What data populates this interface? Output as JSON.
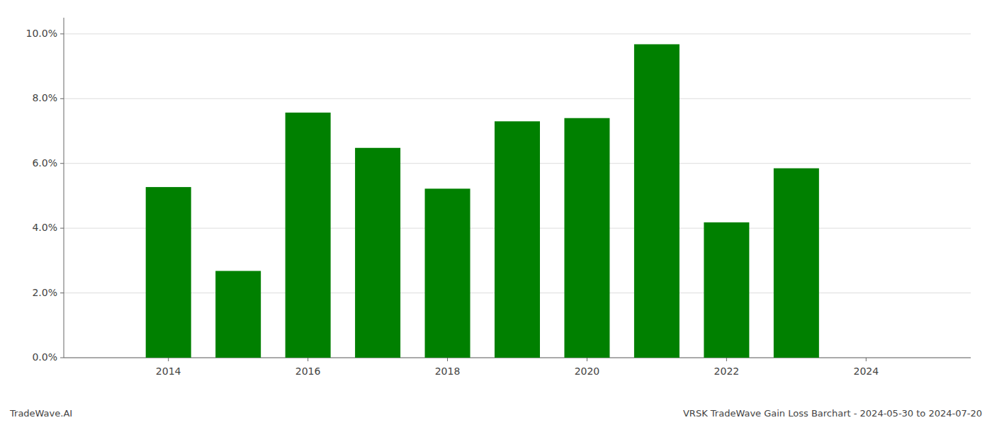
{
  "chart_data": {
    "type": "bar",
    "title": "VRSK TradeWave Gain Loss Barchart - 2024-05-30 to 2024-07-20",
    "annotations": [
      "TradeWave.AI"
    ],
    "x": [
      2014,
      2015,
      2016,
      2017,
      2018,
      2019,
      2020,
      2021,
      2022,
      2023
    ],
    "values": [
      0.0527,
      0.0268,
      0.0757,
      0.0648,
      0.0522,
      0.073,
      0.074,
      0.0968,
      0.0418,
      0.0585
    ],
    "color": "#008000",
    "xlim": [
      2012.5,
      2025.5
    ],
    "xticks": [
      2014,
      2016,
      2018,
      2020,
      2022,
      2024
    ],
    "ylim": [
      0.0,
      0.105
    ],
    "yticks": [
      {
        "value": 0.0,
        "label": "0.0%"
      },
      {
        "value": 0.02,
        "label": "2.0%"
      },
      {
        "value": 0.04,
        "label": "4.0%"
      },
      {
        "value": 0.06,
        "label": "6.0%"
      },
      {
        "value": 0.08,
        "label": "8.0%"
      },
      {
        "value": 0.1,
        "label": "10.0%"
      }
    ],
    "grid": true
  }
}
